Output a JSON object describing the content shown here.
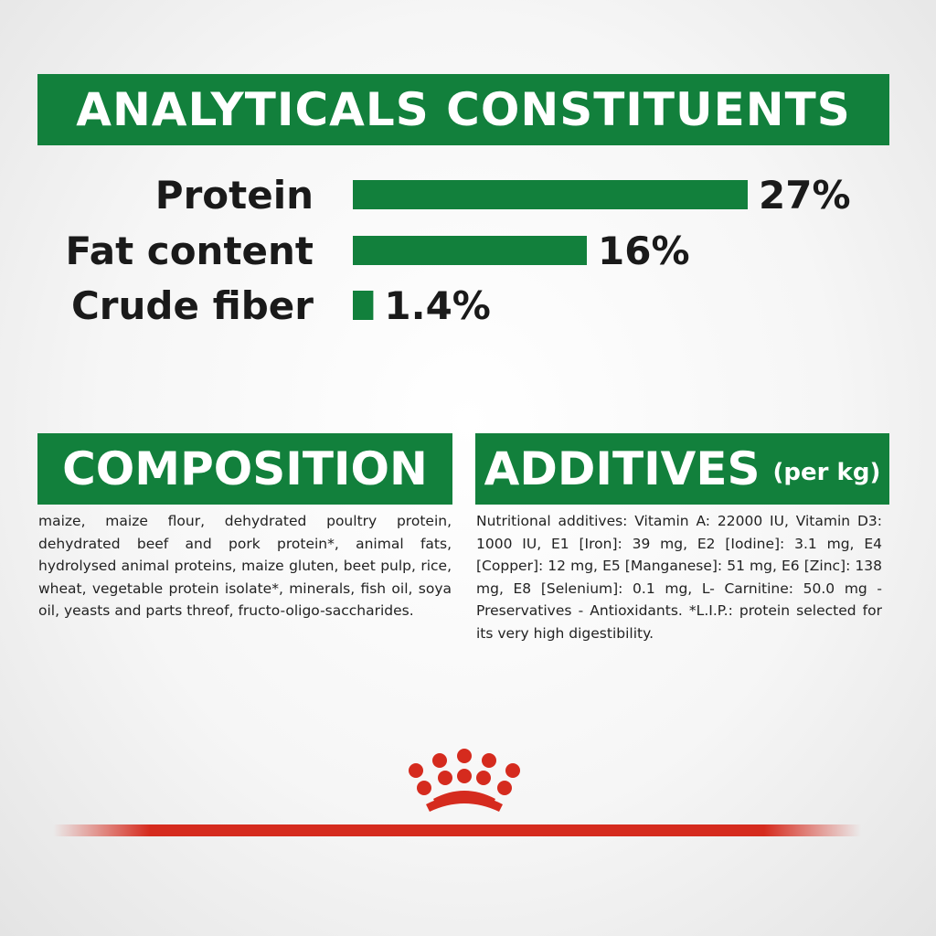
{
  "chart_data": {
    "type": "bar",
    "orientation": "horizontal",
    "title": "ANALYTICALS CONSTITUENTS",
    "categories": [
      "Protein",
      "Fat content",
      "Crude fiber"
    ],
    "values": [
      27,
      16,
      1.4
    ],
    "value_labels": [
      "27%",
      "16%",
      "1.4%"
    ],
    "color": "#12803c"
  },
  "composition": {
    "title": "COMPOSITION",
    "text": "maize, maize flour, dehydrated poultry protein, dehydrated beef and pork protein*, animal fats, hydrolysed animal proteins, maize gluten, beet pulp, rice, wheat, vegetable protein isolate*, minerals, fish oil, soya oil, yeasts and parts threof, fructo-oligo-saccharides."
  },
  "additives": {
    "title": "ADDITIVES",
    "unit": "(per kg)",
    "text": "Nutritional additives: Vitamin A: 22000 IU, Vitamin D3: 1000 IU, E1 [Iron]: 39 mg, E2 [Iodine]: 3.1 mg, E4 [Copper]: 12 mg, E5 [Manganese]: 51 mg, E6 [Zinc]: 138 mg, E8 [Selenium]: 0.1 mg, L- Carnitine: 50.0 mg - Preservatives - Antioxidants. *L.I.P.: protein selected for its very high digestibility."
  }
}
